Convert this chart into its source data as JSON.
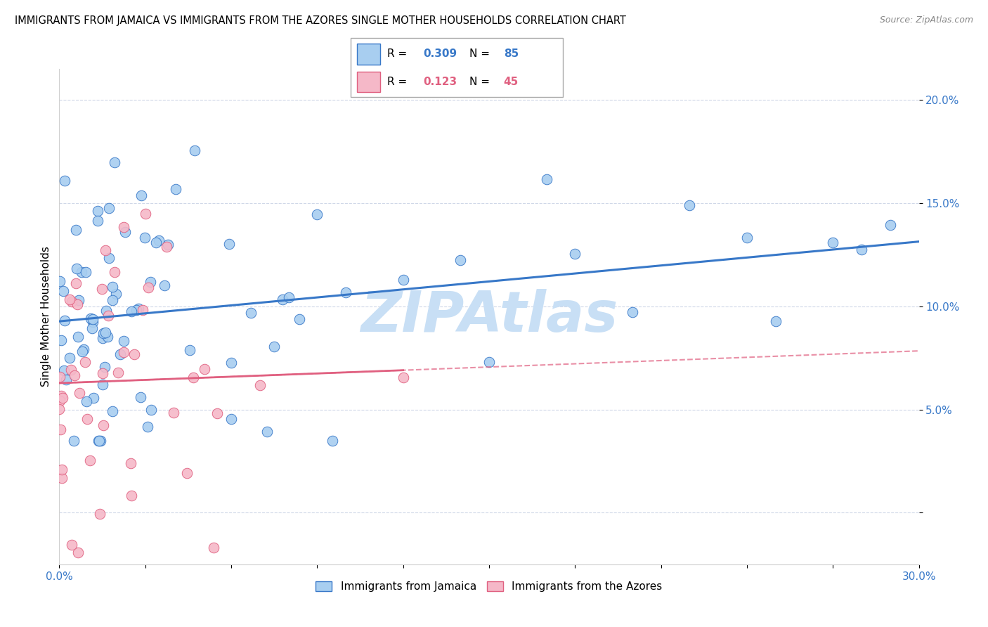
{
  "title": "IMMIGRANTS FROM JAMAICA VS IMMIGRANTS FROM THE AZORES SINGLE MOTHER HOUSEHOLDS CORRELATION CHART",
  "source": "Source: ZipAtlas.com",
  "ylabel": "Single Mother Households",
  "x_min": 0.0,
  "x_max": 0.3,
  "y_min": -0.025,
  "y_max": 0.215,
  "R_jamaica": 0.309,
  "N_jamaica": 85,
  "R_azores": 0.123,
  "N_azores": 45,
  "color_jamaica": "#a8cef0",
  "color_azores": "#f5b8c8",
  "line_color_jamaica": "#3878c8",
  "line_color_azores": "#e06080",
  "watermark": "ZIPAtlas",
  "watermark_color": "#c8dff5",
  "jamaica_seed": 7,
  "azores_seed": 13
}
